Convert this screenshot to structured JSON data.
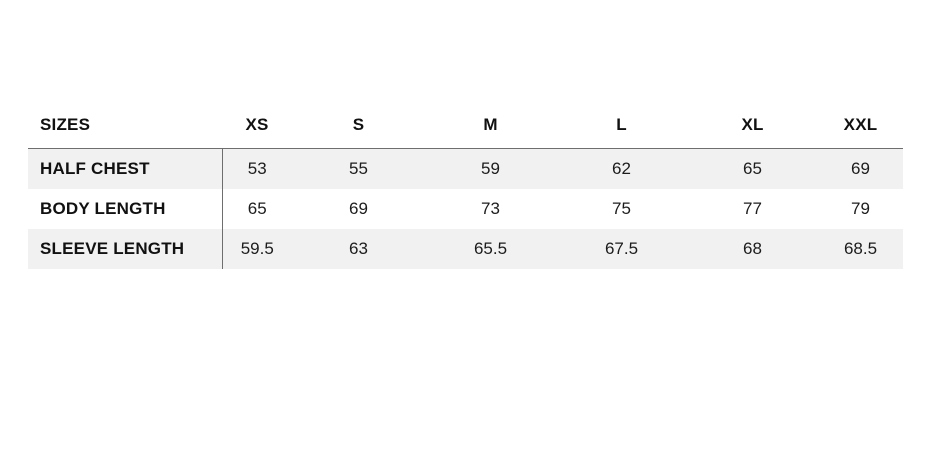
{
  "size_chart": {
    "columns": [
      "SIZES",
      "XS",
      "S",
      "M",
      "L",
      "XL",
      "XXL"
    ],
    "rows": [
      {
        "label": "HALF CHEST",
        "values": [
          "53",
          "55",
          "59",
          "62",
          "65",
          "69"
        ]
      },
      {
        "label": "BODY LENGTH",
        "values": [
          "65",
          "69",
          "73",
          "75",
          "77",
          "79"
        ]
      },
      {
        "label": "SLEEVE LENGTH",
        "values": [
          "59.5",
          "63",
          "65.5",
          "67.5",
          "68",
          "68.5"
        ]
      }
    ],
    "colors": {
      "stripe_background": "#f1f1f1",
      "rule_line": "#6e6e6e",
      "label_text": "#111111",
      "value_text": "#1c1c1c",
      "page_background": "#ffffff"
    }
  }
}
